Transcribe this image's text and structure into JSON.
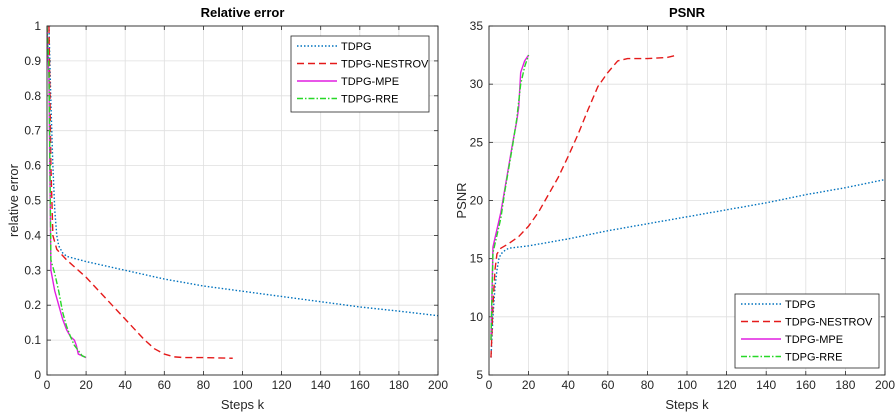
{
  "chart_data": [
    {
      "type": "line",
      "title": "Relative error",
      "xlabel": "Steps k",
      "ylabel": "relative error",
      "xlim": [
        0,
        200
      ],
      "ylim": [
        0,
        1
      ],
      "xticks": [
        0,
        20,
        40,
        60,
        80,
        100,
        120,
        140,
        160,
        180,
        200
      ],
      "yticks": [
        0,
        0.1,
        0.2,
        0.3,
        0.4,
        0.5,
        0.6,
        0.7,
        0.8,
        0.9,
        1
      ],
      "xtick_labels": [
        "0",
        "20",
        "40",
        "60",
        "80",
        "100",
        "120",
        "140",
        "160",
        "180",
        "200"
      ],
      "ytick_labels": [
        "0",
        "0.1",
        "0.2",
        "0.3",
        "0.4",
        "0.5",
        "0.6",
        "0.7",
        "0.8",
        "0.9",
        "1"
      ],
      "grid": true,
      "legend_position": "top-right",
      "series": [
        {
          "name": "TDPG",
          "color": "#0072BD",
          "style": "dotted",
          "points": [
            [
              1,
              1.0
            ],
            [
              2,
              0.78
            ],
            [
              3,
              0.6
            ],
            [
              4,
              0.47
            ],
            [
              5,
              0.4
            ],
            [
              6,
              0.37
            ],
            [
              8,
              0.35
            ],
            [
              10,
              0.34
            ],
            [
              20,
              0.325
            ],
            [
              40,
              0.3
            ],
            [
              60,
              0.275
            ],
            [
              80,
              0.255
            ],
            [
              100,
              0.24
            ],
            [
              120,
              0.225
            ],
            [
              140,
              0.21
            ],
            [
              160,
              0.195
            ],
            [
              180,
              0.183
            ],
            [
              200,
              0.17
            ]
          ]
        },
        {
          "name": "TDPG-NESTROV",
          "color": "#E51A1A",
          "style": "dashed",
          "points": [
            [
              1,
              1.0
            ],
            [
              2,
              0.6
            ],
            [
              3,
              0.4
            ],
            [
              5,
              0.36
            ],
            [
              10,
              0.33
            ],
            [
              20,
              0.28
            ],
            [
              30,
              0.22
            ],
            [
              40,
              0.16
            ],
            [
              50,
              0.1
            ],
            [
              55,
              0.075
            ],
            [
              60,
              0.06
            ],
            [
              65,
              0.052
            ],
            [
              70,
              0.05
            ],
            [
              80,
              0.05
            ],
            [
              95,
              0.048
            ]
          ]
        },
        {
          "name": "TDPG-MPE",
          "color": "#E11FE1",
          "style": "solid",
          "points": [
            [
              0,
              1.0
            ],
            [
              1,
              0.85
            ],
            [
              2,
              0.3
            ],
            [
              4,
              0.24
            ],
            [
              6,
              0.2
            ],
            [
              8,
              0.16
            ],
            [
              10,
              0.13
            ],
            [
              12,
              0.11
            ],
            [
              14,
              0.1
            ],
            [
              15,
              0.085
            ],
            [
              16,
              0.06
            ],
            [
              18,
              0.055
            ],
            [
              20,
              0.05
            ]
          ]
        },
        {
          "name": "TDPG-RRE",
          "color": "#27D827",
          "style": "dashdot",
          "points": [
            [
              0,
              1.0
            ],
            [
              1,
              0.88
            ],
            [
              2,
              0.33
            ],
            [
              4,
              0.29
            ],
            [
              6,
              0.24
            ],
            [
              8,
              0.18
            ],
            [
              10,
              0.14
            ],
            [
              12,
              0.11
            ],
            [
              14,
              0.085
            ],
            [
              16,
              0.07
            ],
            [
              18,
              0.055
            ],
            [
              20,
              0.05
            ]
          ]
        }
      ]
    },
    {
      "type": "line",
      "title": "PSNR",
      "xlabel": "Steps k",
      "ylabel": "PSNR",
      "xlim": [
        0,
        200
      ],
      "ylim": [
        5,
        35
      ],
      "xticks": [
        0,
        20,
        40,
        60,
        80,
        100,
        120,
        140,
        160,
        180,
        200
      ],
      "yticks": [
        5,
        10,
        15,
        20,
        25,
        30,
        35
      ],
      "xtick_labels": [
        "0",
        "20",
        "40",
        "60",
        "80",
        "100",
        "120",
        "140",
        "160",
        "180",
        "200"
      ],
      "ytick_labels": [
        "5",
        "10",
        "15",
        "20",
        "25",
        "30",
        "35"
      ],
      "grid": true,
      "legend_position": "bottom-right",
      "series": [
        {
          "name": "TDPG",
          "color": "#0072BD",
          "style": "dotted",
          "points": [
            [
              1,
              6.5
            ],
            [
              2,
              10
            ],
            [
              3,
              12.5
            ],
            [
              4,
              14
            ],
            [
              5,
              15
            ],
            [
              6,
              15.4
            ],
            [
              8,
              15.7
            ],
            [
              10,
              15.9
            ],
            [
              20,
              16.1
            ],
            [
              40,
              16.7
            ],
            [
              60,
              17.4
            ],
            [
              80,
              18.0
            ],
            [
              100,
              18.6
            ],
            [
              120,
              19.2
            ],
            [
              140,
              19.8
            ],
            [
              160,
              20.5
            ],
            [
              180,
              21.1
            ],
            [
              200,
              21.8
            ]
          ]
        },
        {
          "name": "TDPG-NESTROV",
          "color": "#E51A1A",
          "style": "dashed",
          "points": [
            [
              1,
              6.5
            ],
            [
              2,
              11
            ],
            [
              3,
              14
            ],
            [
              4,
              15.4
            ],
            [
              6,
              15.9
            ],
            [
              10,
              16.3
            ],
            [
              15,
              16.9
            ],
            [
              20,
              17.8
            ],
            [
              25,
              19.0
            ],
            [
              30,
              20.5
            ],
            [
              35,
              22.0
            ],
            [
              40,
              23.8
            ],
            [
              45,
              25.7
            ],
            [
              50,
              27.8
            ],
            [
              55,
              29.8
            ],
            [
              60,
              31.0
            ],
            [
              65,
              32.0
            ],
            [
              70,
              32.2
            ],
            [
              80,
              32.2
            ],
            [
              90,
              32.3
            ],
            [
              95,
              32.5
            ]
          ]
        },
        {
          "name": "TDPG-MPE",
          "color": "#E11FE1",
          "style": "solid",
          "points": [
            [
              1,
              8
            ],
            [
              2,
              16
            ],
            [
              4,
              17.5
            ],
            [
              6,
              19
            ],
            [
              8,
              21
            ],
            [
              10,
              23
            ],
            [
              12,
              25
            ],
            [
              14,
              26.8
            ],
            [
              15,
              28
            ],
            [
              16,
              31
            ],
            [
              18,
              32
            ],
            [
              20,
              32.5
            ]
          ]
        },
        {
          "name": "TDPG-RRE",
          "color": "#27D827",
          "style": "dashdot",
          "points": [
            [
              1,
              8
            ],
            [
              2,
              15.5
            ],
            [
              4,
              17
            ],
            [
              6,
              18.5
            ],
            [
              8,
              20.8
            ],
            [
              10,
              22.8
            ],
            [
              12,
              24.8
            ],
            [
              14,
              27
            ],
            [
              16,
              30
            ],
            [
              18,
              31.5
            ],
            [
              20,
              32.5
            ]
          ]
        }
      ]
    }
  ]
}
